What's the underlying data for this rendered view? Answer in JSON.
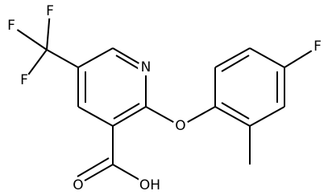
{
  "nodes": [
    {
      "label": "F"
    },
    {
      "label": "F"
    },
    {
      "label": "F"
    },
    {
      "label": "N"
    },
    {
      "label": "O"
    },
    {
      "label": "O"
    },
    {
      "label": "OH"
    },
    {
      "label": "F"
    }
  ]
}
